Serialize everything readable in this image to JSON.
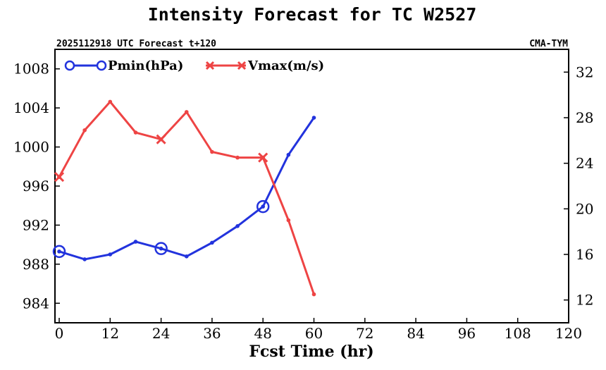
{
  "chart_data": {
    "type": "line",
    "title": "Intensity Forecast for TC W2527",
    "subtitle_left": "2025112918 UTC Forecast t+120",
    "subtitle_right": "CMA-TYM",
    "xlabel": "Fcst Time (hr)",
    "xlim": [
      -1,
      120
    ],
    "xticks": [
      0,
      12,
      24,
      36,
      48,
      60,
      72,
      84,
      96,
      108,
      120
    ],
    "y_left": {
      "ylim": [
        982,
        1010
      ],
      "ticks": [
        984,
        988,
        992,
        996,
        1000,
        1004,
        1008
      ]
    },
    "y_right": {
      "ylim": [
        10,
        34
      ],
      "ticks": [
        12,
        16,
        20,
        24,
        28,
        32
      ]
    },
    "series": [
      {
        "name": "Pmin(hPa)",
        "axis": "left",
        "color": "#2233dd",
        "marker": "circle",
        "x": [
          0,
          6,
          12,
          18,
          24,
          30,
          36,
          42,
          48,
          54,
          60
        ],
        "values": [
          989.3,
          988.5,
          989.0,
          990.3,
          989.6,
          988.8,
          990.2,
          991.9,
          993.9,
          999.2,
          1003.0
        ],
        "marker_x": [
          0,
          24,
          48
        ]
      },
      {
        "name": "Vmax(m/s)",
        "axis": "right",
        "color": "#ee4444",
        "marker": "cross",
        "x": [
          0,
          6,
          12,
          18,
          24,
          30,
          36,
          42,
          48,
          54,
          60
        ],
        "values": [
          22.8,
          26.9,
          29.4,
          26.7,
          26.1,
          28.5,
          25.0,
          24.5,
          24.5,
          19.0,
          12.5
        ],
        "marker_x": [
          0,
          24,
          48
        ]
      }
    ],
    "legend_position": "top-left"
  }
}
